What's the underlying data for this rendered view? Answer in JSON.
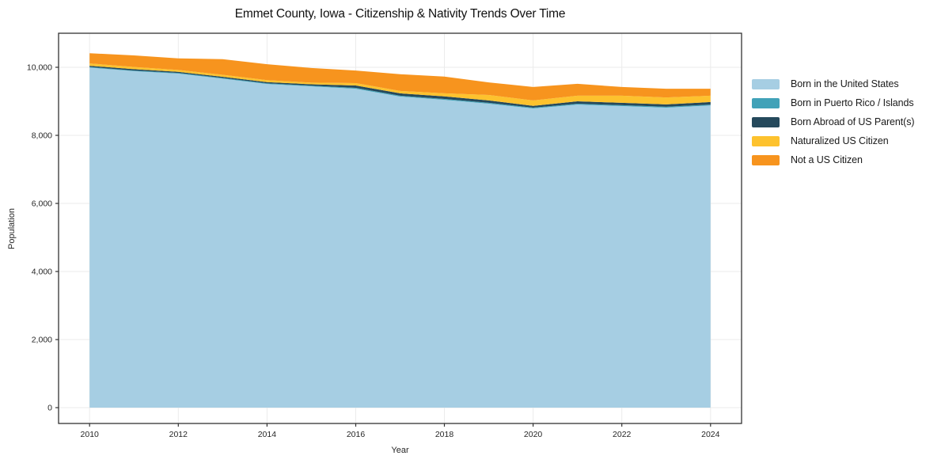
{
  "chart_data": {
    "type": "area",
    "stacked": true,
    "title": "Emmet County, Iowa - Citizenship & Nativity Trends Over Time",
    "xlabel": "Year",
    "ylabel": "Population",
    "x": [
      2010,
      2011,
      2012,
      2013,
      2014,
      2015,
      2016,
      2017,
      2018,
      2019,
      2020,
      2021,
      2022,
      2023,
      2024
    ],
    "series": [
      {
        "name": "Born in the United States",
        "color": "#a6cee3",
        "values": [
          9990,
          9885,
          9815,
          9665,
          9510,
          9440,
          9370,
          9140,
          9045,
          8930,
          8790,
          8905,
          8860,
          8815,
          8880
        ]
      },
      {
        "name": "Born in Puerto Rico / Islands",
        "color": "#41a2b8",
        "values": [
          20,
          20,
          20,
          20,
          20,
          20,
          25,
          25,
          25,
          25,
          25,
          25,
          25,
          25,
          25
        ]
      },
      {
        "name": "Born Abroad of US Parent(s)",
        "color": "#25495c",
        "values": [
          35,
          40,
          30,
          35,
          35,
          40,
          70,
          70,
          75,
          70,
          50,
          70,
          70,
          70,
          75
        ]
      },
      {
        "name": "Naturalized US Citizen",
        "color": "#fdc22e",
        "values": [
          70,
          65,
          55,
          60,
          55,
          50,
          70,
          70,
          90,
          160,
          160,
          165,
          210,
          205,
          185
        ]
      },
      {
        "name": "Not a US Citizen",
        "color": "#f7941e",
        "values": [
          300,
          340,
          340,
          460,
          470,
          430,
          370,
          490,
          490,
          370,
          395,
          350,
          255,
          255,
          205
        ]
      }
    ],
    "xticks": [
      2010,
      2012,
      2014,
      2016,
      2018,
      2020,
      2022,
      2024
    ],
    "xtick_labels": [
      "2010",
      "2012",
      "2014",
      "2016",
      "2018",
      "2020",
      "2022",
      "2024"
    ],
    "yticks": [
      0,
      2000,
      4000,
      6000,
      8000,
      10000
    ],
    "ytick_labels": [
      "0",
      "2,000",
      "4,000",
      "6,000",
      "8,000",
      "10,000"
    ],
    "xlim": [
      2009.3,
      2024.7
    ],
    "ylim": [
      -465,
      11000
    ],
    "grid": true,
    "legend_position": "right"
  },
  "styles": {
    "background": "#ffffff",
    "grid_color": "#ebebeb",
    "spine_color": "#333333",
    "tick_color": "#333333",
    "tick_label_color": "#262626",
    "title_color": "#111111"
  }
}
